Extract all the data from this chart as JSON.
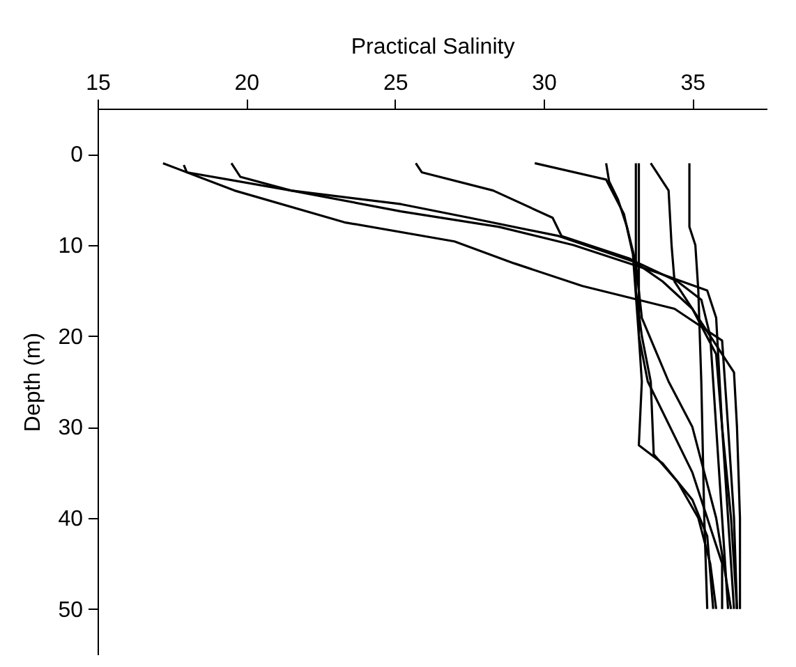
{
  "chart_data": {
    "type": "line",
    "xlabel": "Practical Salinity",
    "ylabel": "Depth (m)",
    "xlim": [
      15,
      37.5
    ],
    "xticks": [
      15,
      20,
      25,
      30,
      35
    ],
    "ylim": [
      55,
      -5
    ],
    "yticks": [
      0,
      10,
      20,
      30,
      40,
      50
    ],
    "grid": false,
    "legend": false,
    "series": [
      {
        "color": "#000000",
        "x": [
          17.2,
          19.6,
          23.3,
          27,
          29,
          31.3,
          34.4,
          36,
          36.2,
          36.4,
          36.5
        ],
        "values": [
          1,
          4,
          7.5,
          9.6,
          12,
          14.5,
          17,
          20.5,
          30,
          40,
          50
        ]
      },
      {
        "color": "#000000",
        "x": [
          17.9,
          18,
          21.5,
          25.2,
          28.5,
          31,
          33.8,
          35.5,
          35.8,
          36,
          36.2,
          36.4
        ],
        "values": [
          1.2,
          2,
          4,
          6.3,
          8,
          10,
          13,
          15,
          18,
          30,
          40,
          50
        ]
      },
      {
        "color": "#000000",
        "x": [
          19.5,
          19.8,
          21.5,
          25.2,
          27.5,
          30.5,
          33.2,
          34.5,
          35.3,
          35.6,
          35.8,
          36,
          36.2
        ],
        "values": [
          1,
          2.5,
          4,
          5.5,
          7,
          9,
          12,
          14,
          16,
          20,
          30,
          40,
          50
        ]
      },
      {
        "color": "#000000",
        "x": [
          25.7,
          25.9,
          28.3,
          30.3,
          30.6,
          32.9,
          34,
          35,
          35.8,
          36,
          36.3,
          36.5
        ],
        "values": [
          1,
          2,
          4,
          7,
          9,
          11.5,
          14,
          17,
          22,
          30,
          40,
          50
        ]
      },
      {
        "color": "#000000",
        "x": [
          29.7,
          32.1,
          32.7,
          33,
          33.2,
          33.5,
          35,
          36,
          36
        ],
        "values": [
          1,
          2.8,
          6.6,
          11,
          20,
          25,
          35,
          45,
          50
        ]
      },
      {
        "color": "#000000",
        "x": [
          33.2,
          33.2,
          33.3,
          33.2,
          34,
          35,
          35.5,
          35.7
        ],
        "values": [
          1,
          20,
          25,
          32,
          34,
          38,
          42,
          50
        ]
      },
      {
        "color": "#000000",
        "x": [
          33.1,
          33.1,
          33.3,
          33.6,
          33.7,
          34.5,
          35.2,
          35.6,
          35.8
        ],
        "values": [
          1,
          15,
          20,
          25,
          33,
          36,
          40,
          45,
          50
        ]
      },
      {
        "color": "#000000",
        "x": [
          32.1,
          32.2,
          32.5,
          32.8,
          33.1,
          33.3,
          34.2,
          35,
          35.8,
          36.3
        ],
        "values": [
          1,
          3,
          5,
          8,
          12,
          18,
          25,
          30,
          40,
          50
        ]
      },
      {
        "color": "#000000",
        "x": [
          33.6,
          33.8,
          34.2,
          34.3,
          34.4,
          35.2,
          35.8,
          36.4,
          36.5,
          36.6,
          36.6
        ],
        "values": [
          1,
          2,
          4,
          10,
          14,
          18,
          21,
          24,
          30,
          40,
          50
        ]
      },
      {
        "color": "#000000",
        "x": [
          34.9,
          34.9,
          35.1,
          35.2,
          35.3,
          35.4,
          35.5
        ],
        "values": [
          1,
          8,
          10,
          15,
          25,
          40,
          50
        ]
      }
    ]
  }
}
